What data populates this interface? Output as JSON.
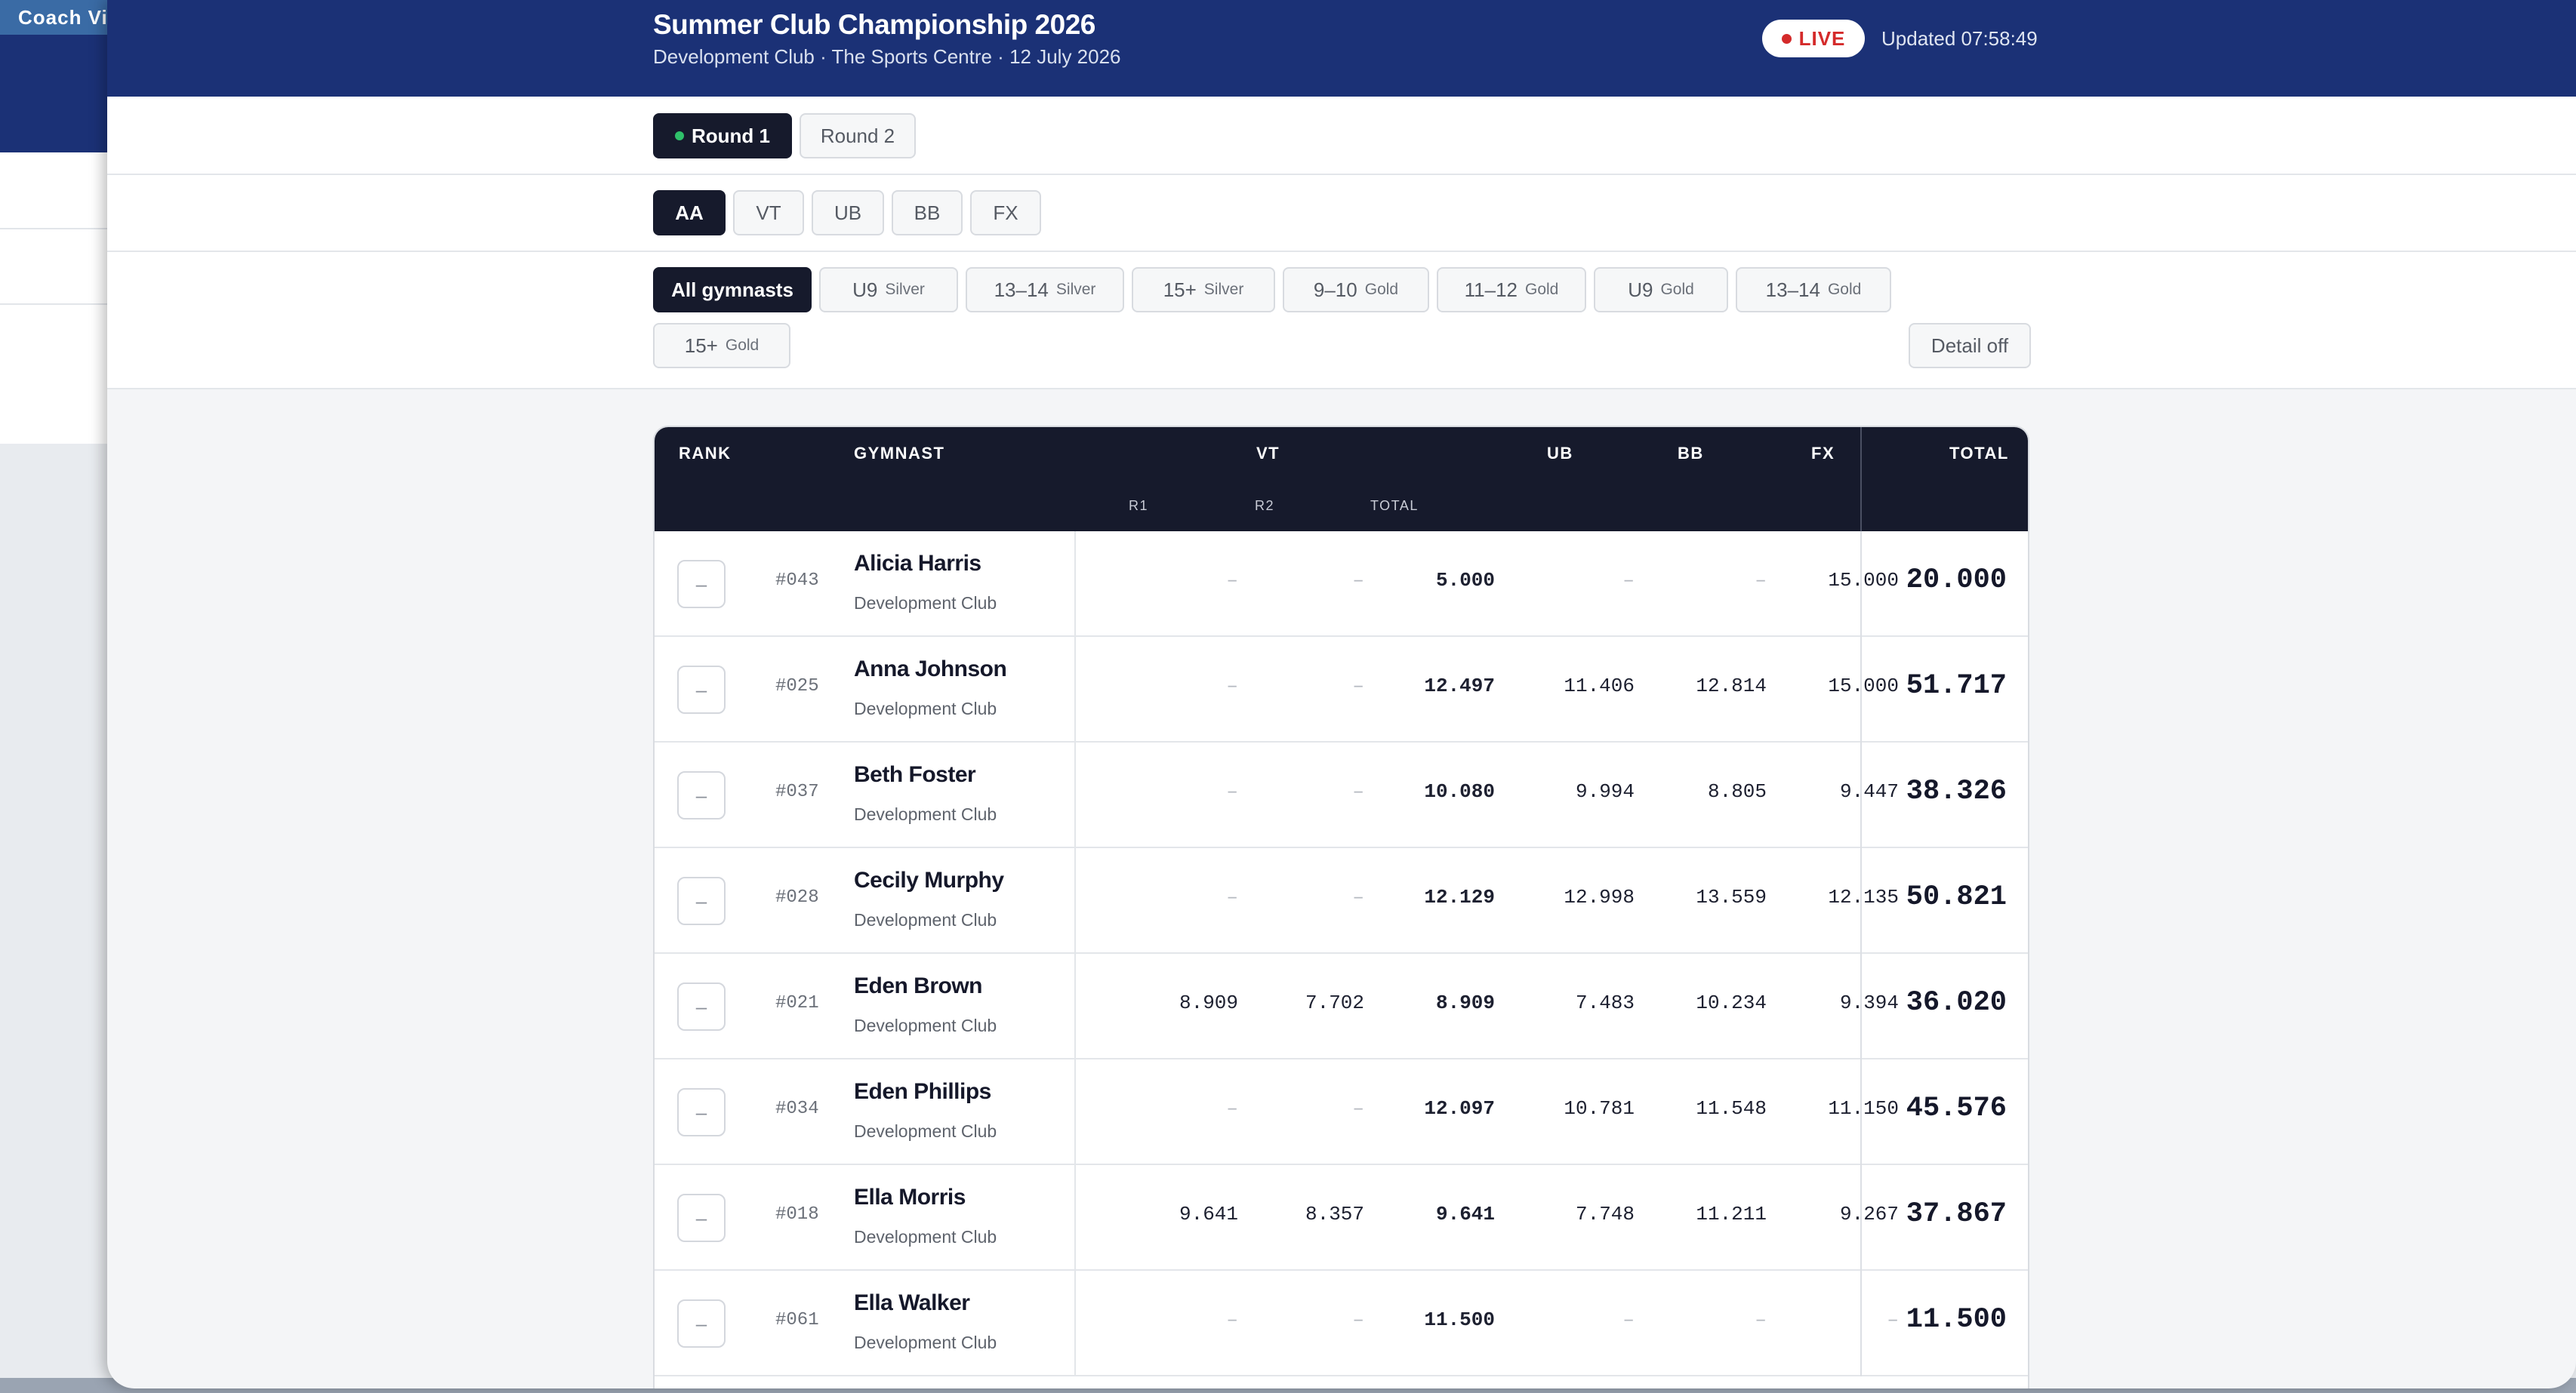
{
  "background": {
    "topbar_label": "Coach View"
  },
  "header": {
    "title": "Summer Club Championship 2026",
    "subtitle": "Development Club · The Sports Centre · 12 July 2026",
    "live_label": "LIVE",
    "updated": "Updated 07:58:49"
  },
  "rounds": [
    "Round 1",
    "Round 2"
  ],
  "apparatus_tabs": [
    "AA",
    "VT",
    "UB",
    "BB",
    "FX"
  ],
  "filters": {
    "all": "All gymnasts",
    "groups": [
      {
        "age": "U9",
        "level": "Silver"
      },
      {
        "age": "13–14",
        "level": "Silver"
      },
      {
        "age": "15+",
        "level": "Silver"
      },
      {
        "age": "9–10",
        "level": "Gold"
      },
      {
        "age": "11–12",
        "level": "Gold"
      },
      {
        "age": "U9",
        "level": "Gold"
      },
      {
        "age": "13–14",
        "level": "Gold"
      },
      {
        "age": "15+",
        "level": "Gold"
      }
    ],
    "detail_toggle": "Detail off"
  },
  "table": {
    "headers": {
      "rank": "RANK",
      "gymnast": "GYMNAST",
      "vt": "VT",
      "r1": "R1",
      "r2": "R2",
      "vt_total": "TOTAL",
      "ub": "UB",
      "bb": "BB",
      "fx": "FX",
      "total": "TOTAL"
    },
    "expand_label": "–",
    "rows": [
      {
        "num": "#043",
        "name": "Alicia Harris",
        "club": "Development Club",
        "r1": "–",
        "r2": "–",
        "vt": "5.000",
        "ub": "–",
        "bb": "–",
        "fx": "15.000",
        "total": "20.000"
      },
      {
        "num": "#025",
        "name": "Anna Johnson",
        "club": "Development Club",
        "r1": "–",
        "r2": "–",
        "vt": "12.497",
        "ub": "11.406",
        "bb": "12.814",
        "fx": "15.000",
        "total": "51.717"
      },
      {
        "num": "#037",
        "name": "Beth Foster",
        "club": "Development Club",
        "r1": "–",
        "r2": "–",
        "vt": "10.080",
        "ub": "9.994",
        "bb": "8.805",
        "fx": "9.447",
        "total": "38.326"
      },
      {
        "num": "#028",
        "name": "Cecily Murphy",
        "club": "Development Club",
        "r1": "–",
        "r2": "–",
        "vt": "12.129",
        "ub": "12.998",
        "bb": "13.559",
        "fx": "12.135",
        "total": "50.821"
      },
      {
        "num": "#021",
        "name": "Eden Brown",
        "club": "Development Club",
        "r1": "8.909",
        "r2": "7.702",
        "vt": "8.909",
        "ub": "7.483",
        "bb": "10.234",
        "fx": "9.394",
        "total": "36.020"
      },
      {
        "num": "#034",
        "name": "Eden Phillips",
        "club": "Development Club",
        "r1": "–",
        "r2": "–",
        "vt": "12.097",
        "ub": "10.781",
        "bb": "11.548",
        "fx": "11.150",
        "total": "45.576"
      },
      {
        "num": "#018",
        "name": "Ella Morris",
        "club": "Development Club",
        "r1": "9.641",
        "r2": "8.357",
        "vt": "9.641",
        "ub": "7.748",
        "bb": "11.211",
        "fx": "9.267",
        "total": "37.867"
      },
      {
        "num": "#061",
        "name": "Ella Walker",
        "club": "Development Club",
        "r1": "–",
        "r2": "–",
        "vt": "11.500",
        "ub": "–",
        "bb": "–",
        "fx": "–",
        "total": "11.500"
      }
    ]
  }
}
